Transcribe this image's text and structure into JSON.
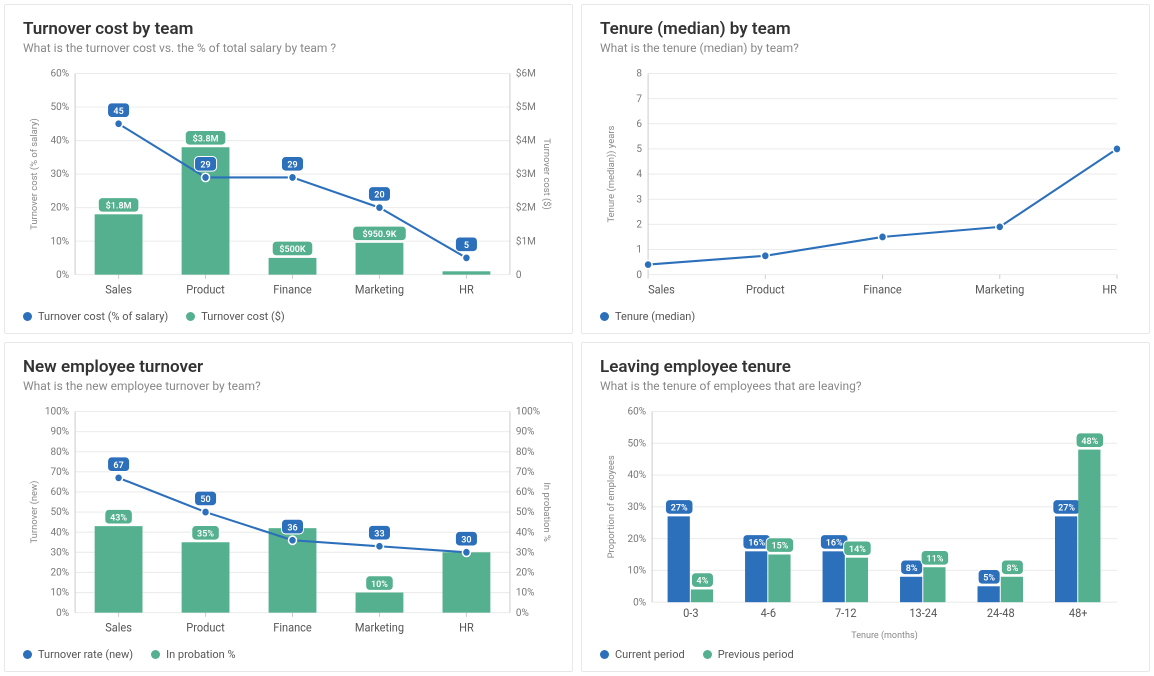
{
  "colors": {
    "blue": "#2c6fbb",
    "green": "#54b08f",
    "grid": "#ececec",
    "axis": "#cccccc",
    "text": "#555555",
    "muted": "#888888",
    "title": "#333333",
    "white": "#ffffff"
  },
  "panels": {
    "turnover_cost": {
      "title": "Turnover cost by team",
      "subtitle": "What is the turnover cost vs. the % of total salary by team ?",
      "type": "combo-bar-line-dual-axis",
      "categories": [
        "Sales",
        "Product",
        "Finance",
        "Marketing",
        "HR"
      ],
      "left_axis": {
        "title": "Turnover cost (% of salary)",
        "min": 0,
        "max": 60,
        "step": 10,
        "suffix": "%"
      },
      "right_axis": {
        "title": "Turnover cost ($)",
        "min": 0,
        "max": 6,
        "step": 1,
        "prefix": "$",
        "suffix": "M"
      },
      "bars": {
        "values": [
          1.8,
          3.8,
          0.5,
          0.95,
          0.1
        ],
        "labels": [
          "$1.8M",
          "$3.8M",
          "$500K",
          "$950.9K",
          ""
        ],
        "color": "#54b08f"
      },
      "line": {
        "values": [
          45,
          29,
          29,
          20,
          5
        ],
        "labels": [
          "45",
          "29",
          "29",
          "20",
          "5"
        ],
        "color": "#2c6fbb"
      },
      "legend": [
        {
          "label": "Turnover cost (% of salary)",
          "color": "#2c6fbb"
        },
        {
          "label": "Turnover cost ($)",
          "color": "#54b08f"
        }
      ]
    },
    "tenure_median": {
      "title": "Tenure (median) by team",
      "subtitle": "What is the tenure (median) by team?",
      "type": "line",
      "categories": [
        "Sales",
        "Product",
        "Finance",
        "Marketing",
        "HR"
      ],
      "y_axis": {
        "title": "Tenure (median)) years",
        "min": 0,
        "max": 8,
        "step": 1
      },
      "line": {
        "values": [
          0.4,
          0.75,
          1.5,
          1.9,
          5.0
        ],
        "color": "#2c6fbb"
      },
      "legend": [
        {
          "label": "Tenure (median)",
          "color": "#2c6fbb"
        }
      ]
    },
    "new_employee": {
      "title": "New employee turnover",
      "subtitle": "What is the new employee turnover by team?",
      "type": "combo-bar-line-dual-axis",
      "categories": [
        "Sales",
        "Product",
        "Finance",
        "Marketing",
        "HR"
      ],
      "left_axis": {
        "title": "Turnover (new)",
        "min": 0,
        "max": 100,
        "step": 10,
        "suffix": "%"
      },
      "right_axis": {
        "title": "In probation %",
        "min": 0,
        "max": 100,
        "step": 10,
        "suffix": "%"
      },
      "bars": {
        "values": [
          43,
          35,
          42,
          10,
          30
        ],
        "labels": [
          "43%",
          "35%",
          "",
          "10%",
          ""
        ],
        "color": "#54b08f"
      },
      "line": {
        "values": [
          67,
          50,
          36,
          33,
          30
        ],
        "labels": [
          "67",
          "50",
          "36",
          "33",
          "30"
        ],
        "color": "#2c6fbb"
      },
      "legend": [
        {
          "label": "Turnover rate (new)",
          "color": "#2c6fbb"
        },
        {
          "label": "In probation %",
          "color": "#54b08f"
        }
      ]
    },
    "leaving_tenure": {
      "title": "Leaving employee tenure",
      "subtitle": "What is the tenure of employees that are leaving?",
      "type": "grouped-bar",
      "categories": [
        "0-3",
        "4-6",
        "7-12",
        "13-24",
        "24-48",
        "48+"
      ],
      "x_axis_title": "Tenure (months)",
      "y_axis": {
        "title": "Proportion of employees",
        "min": 0,
        "max": 60,
        "step": 10,
        "suffix": "%"
      },
      "series": [
        {
          "name": "Current period",
          "color": "#2c6fbb",
          "values": [
            27,
            16,
            16,
            8,
            5,
            27
          ],
          "labels": [
            "27%",
            "16%",
            "16%",
            "8%",
            "5%",
            "27%"
          ]
        },
        {
          "name": "Previous period",
          "color": "#54b08f",
          "values": [
            4,
            15,
            14,
            11,
            8,
            48
          ],
          "labels": [
            "4%",
            "15%",
            "14%",
            "11%",
            "8%",
            "48%"
          ]
        }
      ],
      "legend": [
        {
          "label": "Current period",
          "color": "#2c6fbb"
        },
        {
          "label": "Previous period",
          "color": "#54b08f"
        }
      ]
    }
  }
}
